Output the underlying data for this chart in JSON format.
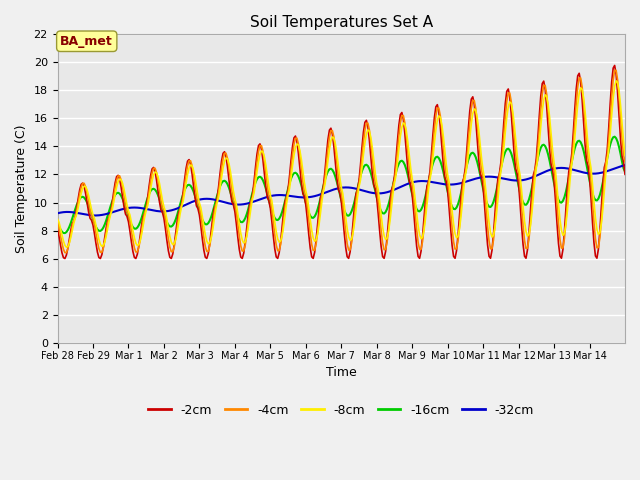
{
  "title": "Soil Temperatures Set A",
  "xlabel": "Time",
  "ylabel": "Soil Temperature (C)",
  "ylim": [
    0,
    22
  ],
  "yticks": [
    0,
    2,
    4,
    6,
    8,
    10,
    12,
    14,
    16,
    18,
    20,
    22
  ],
  "fig_bg": "#f0f0f0",
  "plot_bg": "#e8e8e8",
  "line_colors": {
    "-2cm": "#cc0000",
    "-4cm": "#ff8800",
    "-8cm": "#ffee00",
    "-16cm": "#00cc00",
    "-32cm": "#0000cc"
  },
  "annotation_text": "BA_met",
  "annotation_bg": "#ffff99",
  "annotation_border": "#999933",
  "annotation_text_color": "#880000",
  "grid_color": "#ffffff",
  "tick_fontsize": 7,
  "title_fontsize": 11,
  "label_fontsize": 9,
  "legend_fontsize": 9
}
